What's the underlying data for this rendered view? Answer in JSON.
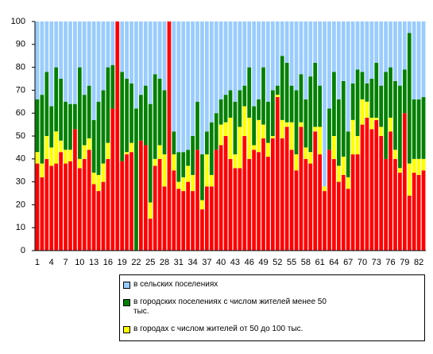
{
  "chart_data": {
    "type": "stacked_bar",
    "categories": [
      1,
      null,
      null,
      4,
      null,
      null,
      7,
      null,
      null,
      10,
      null,
      null,
      13,
      null,
      null,
      16,
      null,
      null,
      19,
      null,
      null,
      22,
      null,
      null,
      25,
      null,
      null,
      28,
      null,
      null,
      31,
      null,
      null,
      34,
      null,
      null,
      37,
      null,
      null,
      40,
      null,
      null,
      43,
      null,
      null,
      46,
      null,
      null,
      49,
      null,
      null,
      52,
      null,
      null,
      55,
      null,
      null,
      58,
      null,
      null,
      61,
      null,
      null,
      64,
      null,
      null,
      67,
      null,
      null,
      70,
      null,
      null,
      73,
      null,
      null,
      76,
      null,
      null,
      79,
      null,
      null,
      82,
      null
    ],
    "series": [
      {
        "color": "#ff0000",
        "values": [
          38,
          32,
          40,
          37,
          38,
          43,
          38,
          39,
          53,
          36,
          40,
          44,
          29,
          26,
          30,
          40,
          62,
          100,
          39,
          42,
          43,
          0,
          48,
          46,
          14,
          37,
          40,
          28,
          100,
          35,
          27,
          26,
          30,
          26,
          44,
          18,
          28,
          28,
          44,
          46,
          50,
          40,
          36,
          36,
          50,
          40,
          44,
          43,
          49,
          41,
          49,
          67,
          49,
          54,
          44,
          35,
          54,
          40,
          38,
          52,
          42,
          26,
          44,
          40,
          30,
          33,
          27,
          42,
          42,
          55,
          58,
          53,
          57,
          50,
          40,
          52,
          40,
          34,
          60,
          24,
          34,
          33,
          35
        ]
      },
      {
        "name": "в городах с числом жителей от 50 до 100 тыс.",
        "color": "#ffff00",
        "values": [
          5,
          6,
          10,
          8,
          14,
          5,
          6,
          5,
          0,
          4,
          6,
          5,
          5,
          7,
          8,
          7,
          0,
          0,
          0,
          1,
          4,
          0,
          0,
          0,
          7,
          3,
          6,
          14,
          0,
          7,
          3,
          6,
          7,
          7,
          0,
          4,
          14,
          5,
          0,
          9,
          6,
          18,
          6,
          18,
          13,
          18,
          2,
          14,
          6,
          6,
          1,
          1,
          8,
          2,
          12,
          7,
          2,
          5,
          5,
          2,
          12,
          2,
          0,
          10,
          7,
          8,
          5,
          15,
          8,
          11,
          7,
          5,
          1,
          4,
          0,
          6,
          4,
          2,
          0,
          14,
          6,
          7,
          5
        ]
      },
      {
        "name": "в городских поселениях с числом жителей менее 50 тыс.",
        "color": "#008000",
        "values": [
          23,
          30,
          28,
          18,
          28,
          27,
          21,
          20,
          11,
          40,
          22,
          23,
          23,
          32,
          32,
          33,
          19,
          0,
          39,
          32,
          26,
          62,
          20,
          26,
          43,
          37,
          29,
          28,
          0,
          10,
          13,
          11,
          7,
          17,
          21,
          20,
          10,
          23,
          16,
          11,
          12,
          12,
          23,
          16,
          9,
          22,
          17,
          9,
          25,
          18,
          20,
          4,
          28,
          26,
          16,
          28,
          21,
          21,
          33,
          28,
          18,
          0,
          18,
          28,
          29,
          33,
          20,
          16,
          29,
          12,
          8,
          17,
          24,
          18,
          38,
          22,
          30,
          36,
          19,
          57,
          26,
          26,
          27
        ]
      },
      {
        "name": "в сельских поселениях",
        "color": "#99ccff",
        "values": [
          34,
          32,
          22,
          37,
          20,
          25,
          35,
          36,
          36,
          20,
          32,
          28,
          43,
          35,
          30,
          20,
          19,
          0,
          22,
          25,
          27,
          38,
          32,
          28,
          36,
          23,
          25,
          30,
          0,
          48,
          57,
          57,
          56,
          50,
          35,
          58,
          48,
          44,
          40,
          34,
          32,
          30,
          35,
          30,
          28,
          20,
          37,
          34,
          20,
          35,
          30,
          28,
          15,
          18,
          28,
          30,
          23,
          34,
          24,
          18,
          28,
          72,
          38,
          22,
          34,
          26,
          48,
          27,
          21,
          22,
          27,
          25,
          18,
          28,
          22,
          20,
          26,
          28,
          21,
          5,
          34,
          34,
          33
        ]
      }
    ],
    "ylim": [
      0,
      100
    ],
    "yticks": [
      0,
      10,
      20,
      30,
      40,
      50,
      60,
      70,
      80,
      90,
      100
    ]
  }
}
